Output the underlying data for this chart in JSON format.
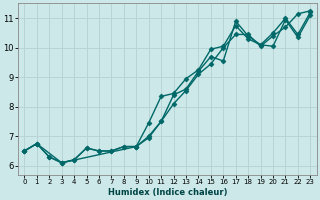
{
  "xlabel": "Humidex (Indice chaleur)",
  "bg_color": "#cce8e8",
  "grid_color": "#b8d4d4",
  "line_color": "#006868",
  "xlim": [
    -0.5,
    23.5
  ],
  "ylim": [
    5.7,
    11.5
  ],
  "xticks": [
    0,
    1,
    2,
    3,
    4,
    5,
    6,
    7,
    8,
    9,
    10,
    11,
    12,
    13,
    14,
    15,
    16,
    17,
    18,
    19,
    20,
    21,
    22,
    23
  ],
  "yticks": [
    6,
    7,
    8,
    9,
    10,
    11
  ],
  "line1_x": [
    0,
    1,
    2,
    3,
    4,
    5,
    6,
    7,
    8,
    9,
    10,
    11,
    12,
    13,
    14,
    15,
    16,
    17,
    18,
    19,
    20,
    21,
    22,
    23
  ],
  "line1_y": [
    6.5,
    6.75,
    6.3,
    6.1,
    6.2,
    6.6,
    6.5,
    6.5,
    6.65,
    6.65,
    6.95,
    7.5,
    8.1,
    8.55,
    9.1,
    9.45,
    10.0,
    10.45,
    10.45,
    10.05,
    10.4,
    10.7,
    11.15,
    11.25
  ],
  "line2_x": [
    0,
    1,
    2,
    3,
    4,
    5,
    6,
    7,
    8,
    9,
    10,
    11,
    12,
    13,
    14,
    15,
    16,
    17,
    18,
    19,
    20,
    21,
    22,
    23
  ],
  "line2_y": [
    6.5,
    6.75,
    6.3,
    6.1,
    6.2,
    6.6,
    6.5,
    6.5,
    6.65,
    6.65,
    7.45,
    8.35,
    8.45,
    8.95,
    9.25,
    9.95,
    10.05,
    10.75,
    10.3,
    10.1,
    10.05,
    10.95,
    10.35,
    11.1
  ],
  "line3_x": [
    0,
    1,
    3,
    9,
    10,
    11,
    12,
    13,
    14,
    15,
    16,
    17,
    18,
    19,
    20,
    21,
    22,
    23
  ],
  "line3_y": [
    6.5,
    6.75,
    6.1,
    6.65,
    7.0,
    7.5,
    8.4,
    8.6,
    9.2,
    9.7,
    9.55,
    10.9,
    10.4,
    10.1,
    10.5,
    11.0,
    10.45,
    11.2
  ],
  "marker": "D",
  "marker_size": 2.5,
  "line_width": 1.0
}
